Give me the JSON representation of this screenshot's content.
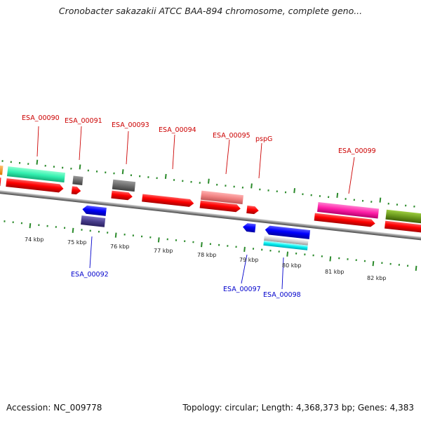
{
  "title": "Cronobacter sakazakii ATCC BAA-894 chromosome, complete geno...",
  "footer": {
    "accession": "Accession: NC_009778",
    "summary": "Topology: circular; Length: 4,368,373 bp; Genes: 4,383"
  },
  "colors": {
    "cds_forward": "#ff0000",
    "cds_reverse": "#0000ff",
    "label_top": "#cc0000",
    "label_bottom": "#0000cc",
    "backbone": "#888888",
    "tick": "#2a8a2a"
  },
  "tick_labels": [
    "74 kbp",
    "75 kbp",
    "76 kbp",
    "77 kbp",
    "78 kbp",
    "79 kbp",
    "80 kbp",
    "81 kbp",
    "82 kbp"
  ],
  "top_labels": [
    "ESA_00090",
    "ESA_00091",
    "ESA_00093",
    "ESA_00094",
    "ESA_00095",
    "pspG",
    "ESA_00099"
  ],
  "bottom_labels": [
    "ESA_00092",
    "ESA_00097",
    "ESA_00098"
  ]
}
